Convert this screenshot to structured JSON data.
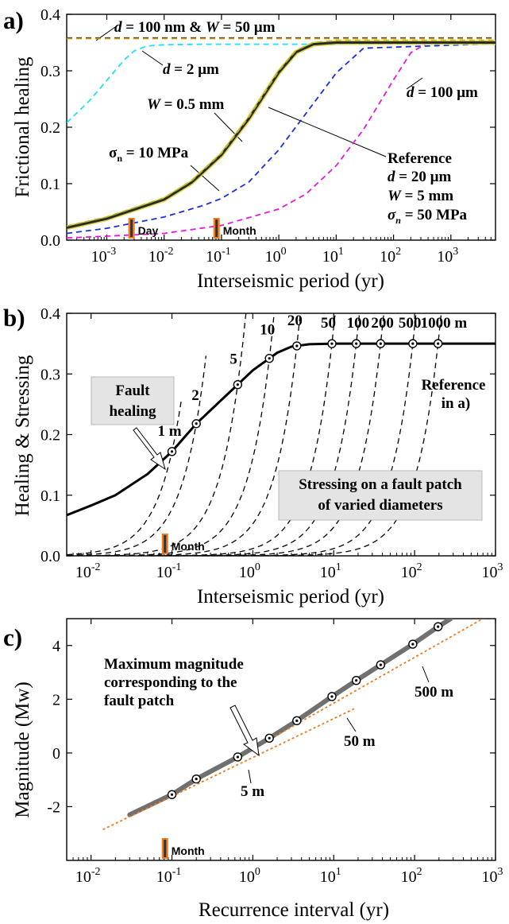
{
  "chart_data": [
    {
      "panel": "a)",
      "type": "line",
      "xlabel": "Interseismic period (yr)",
      "ylabel": "Frictional healing",
      "xscale": "log",
      "xlim": [
        0.0002,
        6000
      ],
      "ylim": [
        0,
        0.4
      ],
      "xticks": [
        "10^-3",
        "10^-2",
        "10^-1",
        "10^0",
        "10^1",
        "10^2",
        "10^3"
      ],
      "yticks": [
        "0.0",
        "0.1",
        "0.2",
        "0.3",
        "0.4"
      ],
      "series": [
        {
          "name": "d = 100 nm & W = 50 µm",
          "style": "dashed",
          "color": "#1a1a1a",
          "x": [
            0.0002,
            6000
          ],
          "y": [
            0.358,
            0.358
          ]
        },
        {
          "name": "d = 2 µm",
          "style": "dashed",
          "color": "#22e0f0",
          "x": [
            0.0002,
            0.0005,
            0.001,
            0.002,
            0.003,
            0.005,
            0.01,
            0.05,
            6000
          ],
          "y": [
            0.208,
            0.247,
            0.283,
            0.319,
            0.335,
            0.344,
            0.346,
            0.347,
            0.347
          ]
        },
        {
          "name": "W = 0.5 mm",
          "style": "dashed",
          "color": "#1a2de0",
          "x": [
            0.0002,
            0.001,
            0.01,
            0.05,
            0.1,
            0.3,
            1,
            3,
            10,
            30,
            6000
          ],
          "y": [
            0.012,
            0.021,
            0.041,
            0.062,
            0.074,
            0.103,
            0.16,
            0.225,
            0.296,
            0.34,
            0.348
          ]
        },
        {
          "name": "d = 100 µm",
          "style": "dashed",
          "color": "#e61ad6",
          "x": [
            0.0002,
            0.001,
            0.01,
            0.1,
            1,
            3,
            10,
            30,
            100,
            200,
            400,
            6000
          ],
          "y": [
            0.004,
            0.007,
            0.012,
            0.026,
            0.055,
            0.082,
            0.132,
            0.196,
            0.284,
            0.332,
            0.35,
            0.352
          ]
        },
        {
          "name": "Reference",
          "style": "solid",
          "color": "#2a2a2a",
          "x": [
            0.0002,
            0.001,
            0.01,
            0.03,
            0.1,
            0.3,
            1,
            2,
            4,
            10,
            6000
          ],
          "y": [
            0.022,
            0.038,
            0.072,
            0.102,
            0.151,
            0.215,
            0.297,
            0.333,
            0.347,
            0.35,
            0.35
          ]
        },
        {
          "name": "σn = 10 MPa",
          "style": "dashed",
          "color": "#b5b02e",
          "x": [
            0.0002,
            0.001,
            0.01,
            0.03,
            0.1,
            0.3,
            1,
            2,
            4,
            10,
            6000
          ],
          "y": [
            0.025,
            0.041,
            0.075,
            0.105,
            0.154,
            0.218,
            0.3,
            0.336,
            0.35,
            0.354,
            0.354
          ]
        },
        {
          "name": "d = 100 nm",
          "style": "dashed",
          "color": "#c99a1e",
          "x": [
            0.0002,
            6000
          ],
          "y": [
            0.357,
            0.357
          ]
        }
      ],
      "annotations": [
        {
          "text_parts": [
            {
              "t": "d",
              "i": true
            },
            {
              "t": " = 100 nm & "
            },
            {
              "t": "W",
              "i": true
            },
            {
              "t": " = 50 µm"
            }
          ]
        },
        {
          "text_parts": [
            {
              "t": "d",
              "i": true
            },
            {
              "t": " = 2 µm"
            }
          ]
        },
        {
          "text_parts": [
            {
              "t": "W",
              "i": true
            },
            {
              "t": " = 0.5 mm"
            }
          ]
        },
        {
          "text_parts": [
            {
              "t": "d",
              "i": true
            },
            {
              "t": " = 100 µm"
            }
          ]
        },
        {
          "text_parts": [
            {
              "t": "σ"
            },
            {
              "t": "n",
              "sub": true
            },
            {
              "t": " = 10 MPa"
            }
          ]
        },
        {
          "text_parts": [
            {
              "t": "Reference"
            }
          ]
        },
        {
          "text_parts": [
            {
              "t": "d",
              "i": true
            },
            {
              "t": " = 20 µm"
            }
          ]
        },
        {
          "text_parts": [
            {
              "t": "W",
              "i": true
            },
            {
              "t": " = 5 mm"
            }
          ]
        },
        {
          "text_parts": [
            {
              "t": "σ",
              "i": true
            },
            {
              "t": "n",
              "sub": true,
              "i": true
            },
            {
              "t": " = 50 MPa"
            }
          ]
        }
      ],
      "markers": [
        {
          "label": "Day",
          "x": 0.0027
        },
        {
          "label": "Month",
          "x": 0.082
        }
      ]
    },
    {
      "panel": "b)",
      "type": "line",
      "xlabel": "Interseismic period (yr)",
      "ylabel": "Healing & Stressing",
      "xscale": "log",
      "xlim": [
        0.005,
        1000
      ],
      "ylim": [
        0,
        0.4
      ],
      "xticks": [
        "10^-2",
        "10^-1",
        "10^0",
        "10^1",
        "10^2",
        "10^3"
      ],
      "yticks": [
        "0.0",
        "0.1",
        "0.2",
        "0.3",
        "0.4"
      ],
      "healing_curve": {
        "name": "Fault healing",
        "x": [
          0.005,
          0.01,
          0.02,
          0.05,
          0.1,
          0.2,
          0.5,
          1,
          2,
          3,
          5,
          10,
          1000
        ],
        "y": [
          0.067,
          0.083,
          0.1,
          0.135,
          0.172,
          0.218,
          0.268,
          0.306,
          0.335,
          0.345,
          0.349,
          0.35,
          0.35
        ]
      },
      "stressing_patches": [
        {
          "label": "1 m",
          "t": 0.1
        },
        {
          "label": "2",
          "t": 0.2
        },
        {
          "label": "5",
          "t": 0.65
        },
        {
          "label": "10",
          "t": 1.6
        },
        {
          "label": "20",
          "t": 3.5
        },
        {
          "label": "50",
          "t": 9.5
        },
        {
          "label": "100",
          "t": 19
        },
        {
          "label": "200",
          "t": 38
        },
        {
          "label": "500",
          "t": 95
        },
        {
          "label": "1000 m",
          "t": 195
        }
      ],
      "annotations": {
        "fault_healing_box": [
          "Fault",
          "healing"
        ],
        "stressing_box": [
          "Stressing on a fault patch",
          "of varied diameters"
        ],
        "reference": [
          "Reference",
          "in a)"
        ]
      },
      "markers": [
        {
          "label": "Month",
          "x": 0.082
        }
      ]
    },
    {
      "panel": "c)",
      "type": "line",
      "xlabel": "Recurrence interval  (yr)",
      "ylabel": "Magnitude (Mw)",
      "xscale": "log",
      "xlim": [
        0.005,
        1000
      ],
      "ylim": [
        -4,
        5
      ],
      "xticks": [
        "10^-2",
        "10^-1",
        "10^0",
        "10^1",
        "10^2",
        "10^3"
      ],
      "yticks": [
        "-2",
        "0",
        "2",
        "4"
      ],
      "band_curve": {
        "x": [
          0.03,
          0.1,
          0.2,
          0.65,
          1.6,
          3.5,
          9.5,
          19,
          38,
          95,
          195,
          280
        ],
        "y": [
          -2.3,
          -1.55,
          -0.97,
          -0.15,
          0.55,
          1.2,
          2.1,
          2.7,
          3.28,
          4.05,
          4.7,
          5.0
        ]
      },
      "points": [
        {
          "x": 0.1,
          "y": -1.55
        },
        {
          "x": 0.2,
          "y": -0.97
        },
        {
          "x": 0.65,
          "y": -0.15
        },
        {
          "x": 1.6,
          "y": 0.55
        },
        {
          "x": 3.5,
          "y": 1.2
        },
        {
          "x": 9.5,
          "y": 2.1
        },
        {
          "x": 19,
          "y": 2.7
        },
        {
          "x": 38,
          "y": 3.28
        },
        {
          "x": 95,
          "y": 4.05
        },
        {
          "x": 195,
          "y": 4.7
        }
      ],
      "fit_lines": [
        {
          "x": [
            0.014,
            18
          ],
          "y": [
            -2.85,
            1.65
          ]
        },
        {
          "x": [
            1.5,
            700
          ],
          "y": [
            0.45,
            5.0
          ]
        }
      ],
      "annotations": {
        "title_lines": [
          "Maximum magnitude",
          "corresponding to the",
          "fault patch"
        ],
        "labels": [
          "5 m",
          "50 m",
          "500 m"
        ]
      },
      "markers": [
        {
          "label": "Month",
          "x": 0.082
        }
      ]
    }
  ],
  "colors": {
    "marker_fill": "#f07a1e",
    "marker_core": "#333333",
    "band": "#707070",
    "fit": "#f07a1e",
    "box_fill": "#e4e4e4"
  }
}
